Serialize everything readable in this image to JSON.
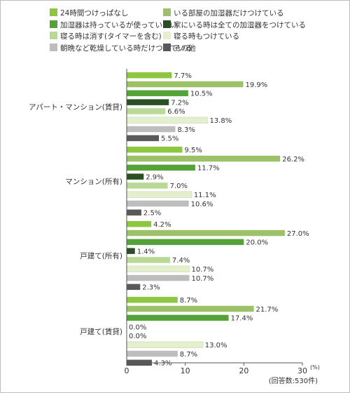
{
  "chart_data": {
    "type": "bar",
    "orientation": "horizontal",
    "legend_position": "top",
    "xlim": [
      0,
      30
    ],
    "x_ticks": [
      {
        "value": 0,
        "label": "0"
      },
      {
        "value": 10,
        "label": "10"
      },
      {
        "value": 20,
        "label": "20"
      },
      {
        "value": 30,
        "label": "30"
      }
    ],
    "x_unit": "(%)",
    "note": "(回答数:530件)",
    "grid": false,
    "series": [
      {
        "name": "24時間つけっぱなし",
        "color": "#8dc63f"
      },
      {
        "name": "いる部屋の加湿器だけつけている",
        "color": "#9cc168"
      },
      {
        "name": "加湿器は持っているが使っていない",
        "color": "#55a238"
      },
      {
        "name": "家にいる時は全ての加湿器をつけている",
        "color": "#2b4f24"
      },
      {
        "name": "寝る時は消す(タイマーを含む)",
        "color": "#b9d997"
      },
      {
        "name": "寝る時もつけている",
        "color": "#e3efce"
      },
      {
        "name": "朝晩など乾燥している時だけつけている",
        "color": "#bdbdbd"
      },
      {
        "name": "その他",
        "color": "#595959"
      }
    ],
    "groups": [
      {
        "label": "アパート・マンション(賃貸)",
        "bars": [
          {
            "series": 0,
            "value": 7.7,
            "label": "7.7%"
          },
          {
            "series": 1,
            "value": 19.9,
            "label": "19.9%"
          },
          {
            "series": 2,
            "value": 10.5,
            "label": "10.5%"
          },
          {
            "series": 3,
            "value": 7.2,
            "label": "7.2%"
          },
          {
            "series": 4,
            "value": 6.6,
            "label": "6.6%"
          },
          {
            "series": 5,
            "value": 13.8,
            "label": "13.8%"
          },
          {
            "series": 6,
            "value": 8.3,
            "label": "8.3%"
          },
          {
            "series": 7,
            "value": 5.5,
            "label": "5.5%"
          }
        ]
      },
      {
        "label": "マンション(所有)",
        "bars": [
          {
            "series": 0,
            "value": 9.5,
            "label": "9.5%"
          },
          {
            "series": 1,
            "value": 26.2,
            "label": "26.2%"
          },
          {
            "series": 2,
            "value": 11.7,
            "label": "11.7%"
          },
          {
            "series": 3,
            "value": 2.9,
            "label": "2.9%"
          },
          {
            "series": 4,
            "value": 7.0,
            "label": "7.0%"
          },
          {
            "series": 5,
            "value": 11.1,
            "label": "11.1%"
          },
          {
            "series": 6,
            "value": 10.6,
            "label": "10.6%"
          },
          {
            "series": 7,
            "value": 2.5,
            "label": "2.5%"
          }
        ]
      },
      {
        "label": "戸建て(所有)",
        "bars": [
          {
            "series": 0,
            "value": 4.2,
            "label": "4.2%"
          },
          {
            "series": 1,
            "value": 27.0,
            "label": "27.0%"
          },
          {
            "series": 2,
            "value": 20.0,
            "label": "20.0%"
          },
          {
            "series": 3,
            "value": 1.4,
            "label": "1.4%"
          },
          {
            "series": 4,
            "value": 7.4,
            "label": "7.4%"
          },
          {
            "series": 5,
            "value": 10.7,
            "label": "10.7%"
          },
          {
            "series": 6,
            "value": 10.7,
            "label": "10.7%"
          },
          {
            "series": 7,
            "value": 2.3,
            "label": "2.3%"
          }
        ]
      },
      {
        "label": "戸建て(賃貸)",
        "bars": [
          {
            "series": 0,
            "value": 8.7,
            "label": "8.7%"
          },
          {
            "series": 1,
            "value": 21.7,
            "label": "21.7%"
          },
          {
            "series": 2,
            "value": 17.4,
            "label": "17.4%"
          },
          {
            "series": 3,
            "value": 0.0,
            "label": "0.0%"
          },
          {
            "series": 4,
            "value": 0.0,
            "label": "0.0%"
          },
          {
            "series": 5,
            "value": 13.0,
            "label": "13.0%"
          },
          {
            "series": 6,
            "value": 8.7,
            "label": "8.7%"
          },
          {
            "series": 7,
            "value": 4.3,
            "label": "4.3%"
          }
        ]
      }
    ]
  }
}
